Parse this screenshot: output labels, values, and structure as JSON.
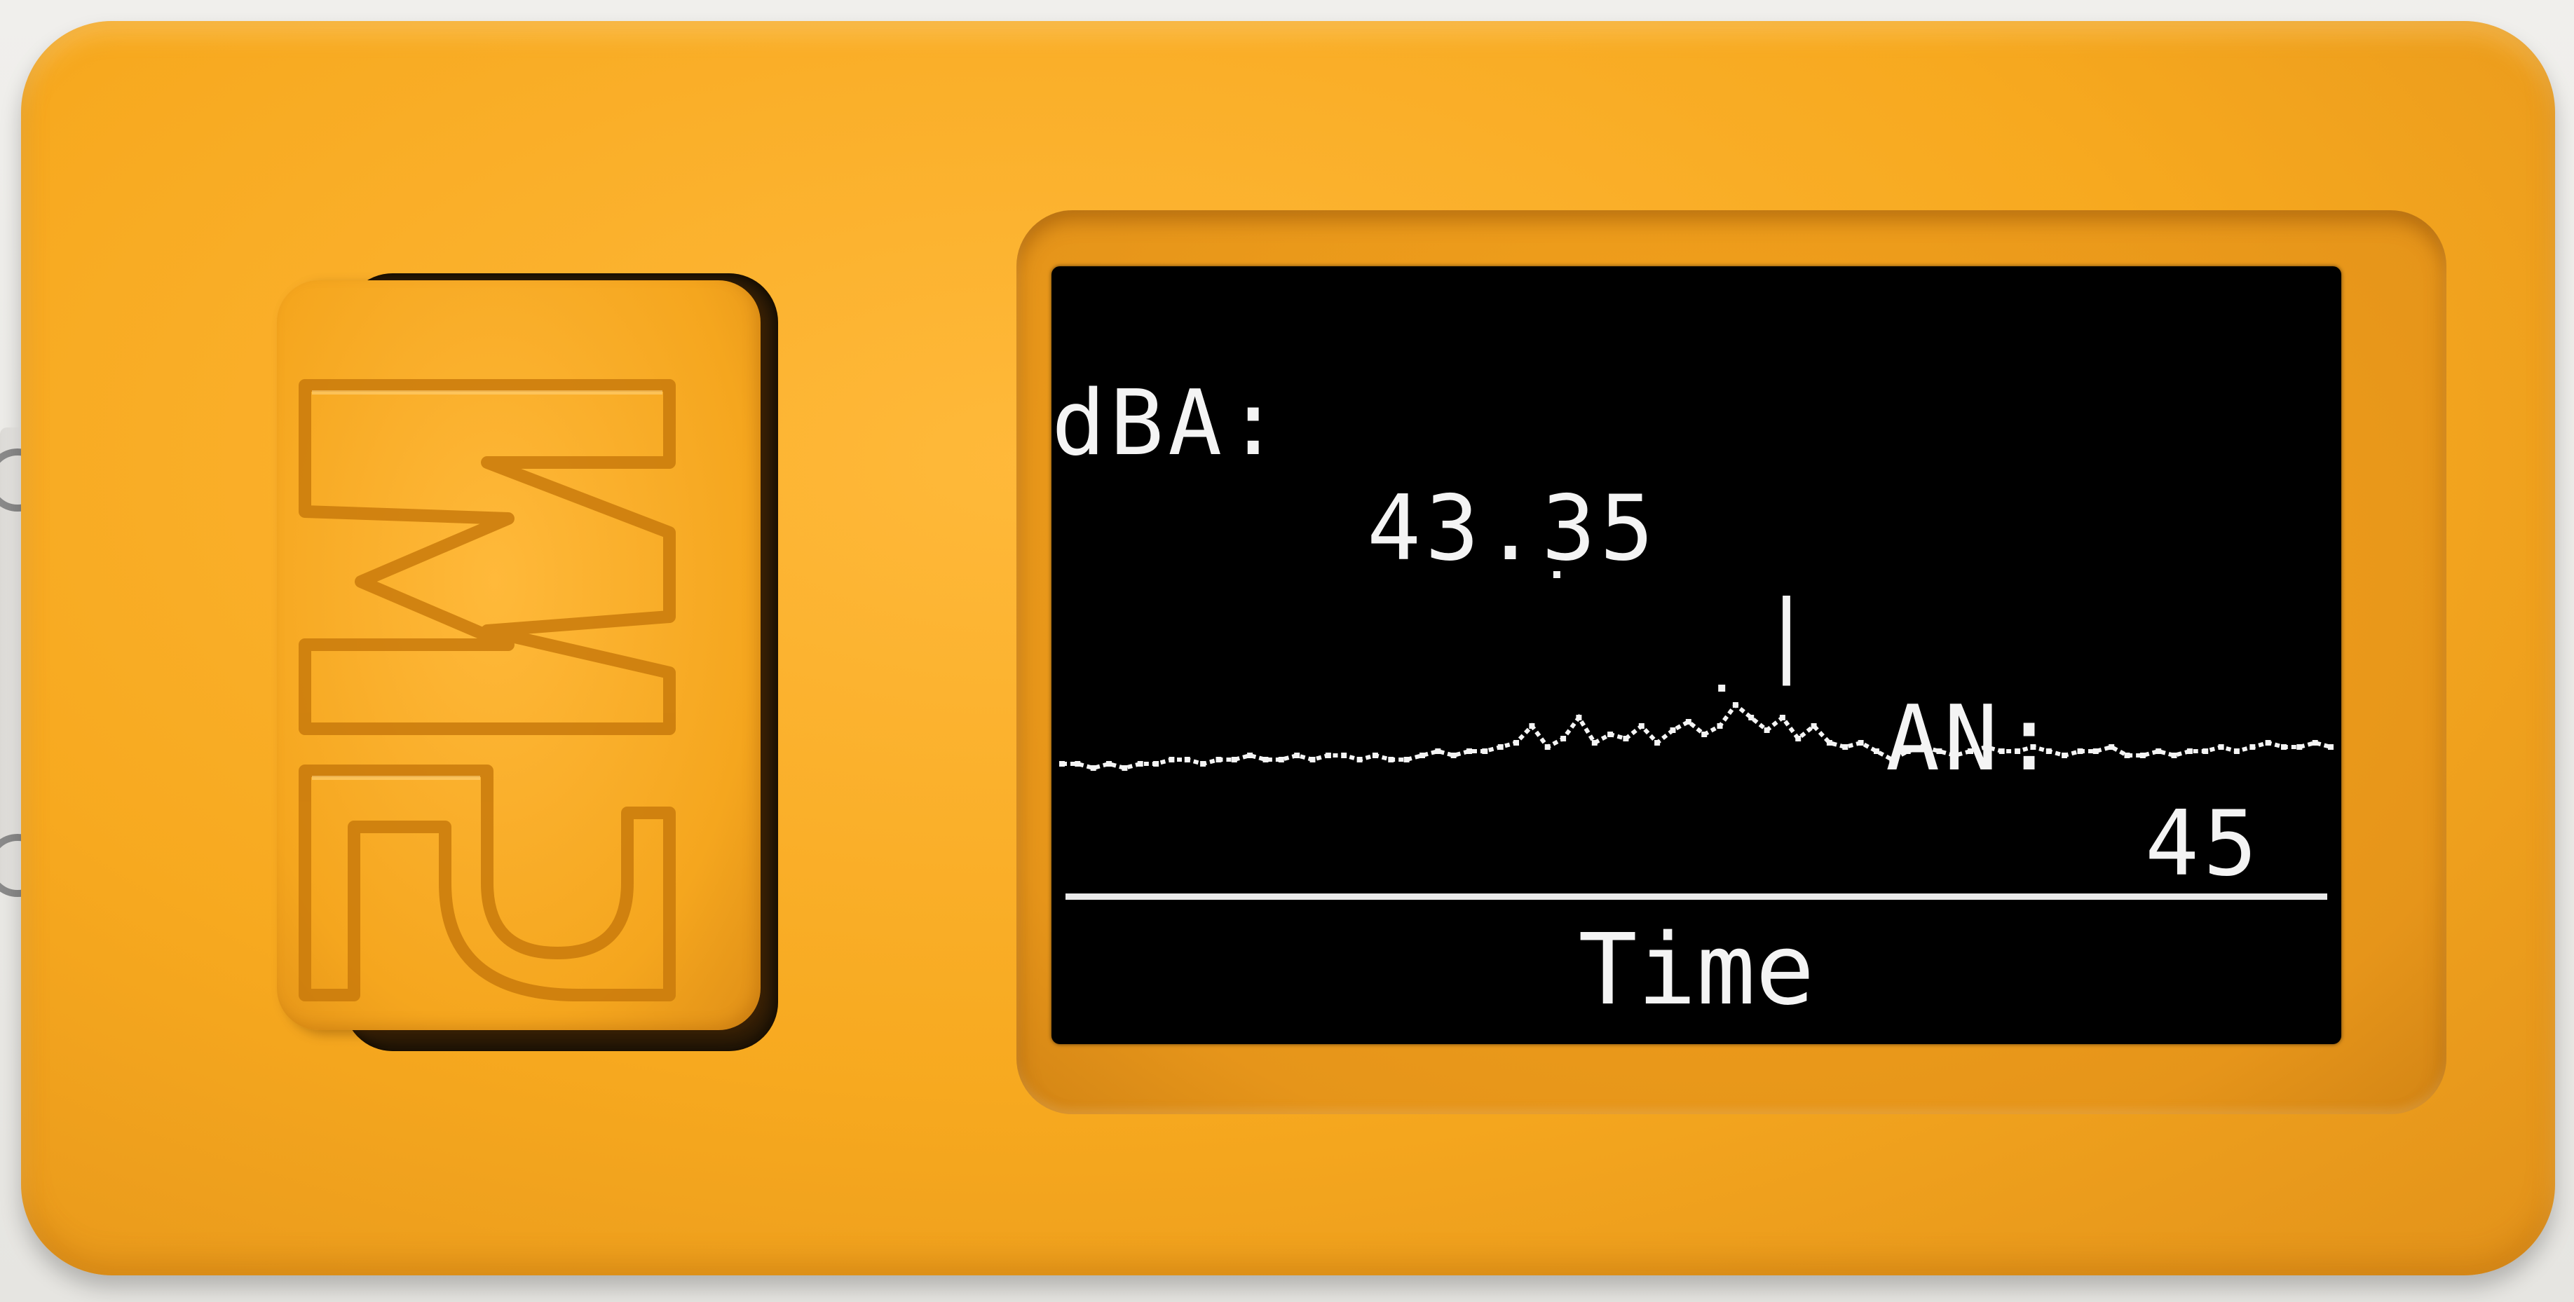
{
  "device": {
    "logo_text": "M5",
    "case_color": "#f7a91f",
    "screen_color": "#000000",
    "ink_color": "#f4f4f4"
  },
  "display": {
    "dba_label": "dBA:",
    "dba_value": "43.35",
    "separator": "|",
    "an_label": "AN:",
    "an_value": "45",
    "x_label": "Time"
  },
  "chart_data": {
    "type": "line",
    "title": "",
    "xlabel": "Time",
    "ylabel": "",
    "series": [
      {
        "values": [
          0.5,
          0.5,
          0.4,
          0.5,
          0.4,
          0.5,
          0.5,
          0.6,
          0.6,
          0.5,
          0.6,
          0.6,
          0.7,
          0.6,
          0.6,
          0.7,
          0.6,
          0.7,
          0.7,
          0.6,
          0.7,
          0.6,
          0.6,
          0.7,
          0.8,
          0.7,
          0.8,
          0.8,
          0.9,
          1.0,
          1.4,
          0.9,
          1.1,
          1.6,
          1.0,
          1.2,
          1.1,
          1.4,
          1.0,
          1.3,
          1.5,
          1.2,
          1.4,
          1.9,
          1.6,
          1.3,
          1.6,
          1.1,
          1.4,
          1.0,
          0.9,
          1.0,
          0.8,
          0.6,
          0.8,
          0.9,
          0.8,
          0.7,
          0.8,
          0.9,
          0.8,
          0.8,
          0.9,
          0.8,
          0.7,
          0.8,
          0.8,
          0.9,
          0.7,
          0.7,
          0.8,
          0.7,
          0.8,
          0.8,
          0.9,
          0.8,
          0.9,
          1.0,
          0.9,
          0.9,
          1.0,
          0.9
        ]
      }
    ],
    "outliers": [
      5.0,
      2.3
    ],
    "grid": false,
    "legend": "none"
  }
}
